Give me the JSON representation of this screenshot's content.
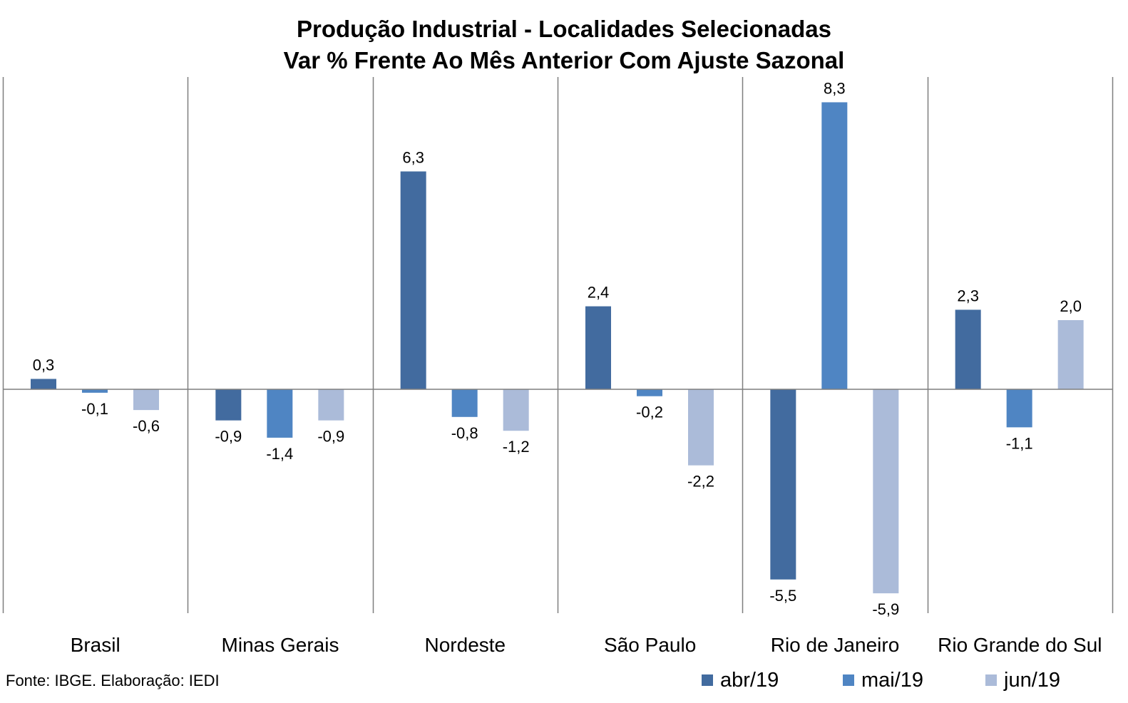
{
  "title": "Produção Industrial - Localidades Selecionadas",
  "subtitle": "Var % Frente Ao Mês Anterior Com Ajuste Sazonal",
  "source": "Fonte: IBGE. Elaboração: IEDI",
  "chart_data": {
    "type": "bar",
    "title": "Produção Industrial - Localidades Selecionadas",
    "subtitle": "Var % Frente Ao Mês Anterior Com Ajuste Sazonal",
    "categories": [
      "Brasil",
      "Minas Gerais",
      "Nordeste",
      "São Paulo",
      "Rio de Janeiro",
      "Rio Grande do Sul"
    ],
    "series": [
      {
        "name": "abr/19",
        "color": "#426b9f",
        "values": [
          0.3,
          -0.9,
          6.3,
          2.4,
          -5.5,
          2.3
        ],
        "labels": [
          "0,3",
          "-0,9",
          "6,3",
          "2,4",
          "-5,5",
          "2,3"
        ]
      },
      {
        "name": "mai/19",
        "color": "#4f85c3",
        "values": [
          -0.1,
          -1.4,
          -0.8,
          -0.2,
          8.3,
          -1.1
        ],
        "labels": [
          "-0,1",
          "-1,4",
          "-0,8",
          "-0,2",
          "8,3",
          "-1,1"
        ]
      },
      {
        "name": "jun/19",
        "color": "#abbbd9",
        "values": [
          -0.6,
          -0.9,
          -1.2,
          -2.2,
          -5.9,
          2.0
        ],
        "labels": [
          "-0,6",
          "-0,9",
          "-1,2",
          "-2,2",
          "-5,9",
          "2,0"
        ]
      }
    ],
    "ylim": [
      -6.5,
      9.0
    ],
    "xlabel": "",
    "ylabel": "",
    "grid": false,
    "category_separators": true,
    "legend": "bottom-right"
  }
}
